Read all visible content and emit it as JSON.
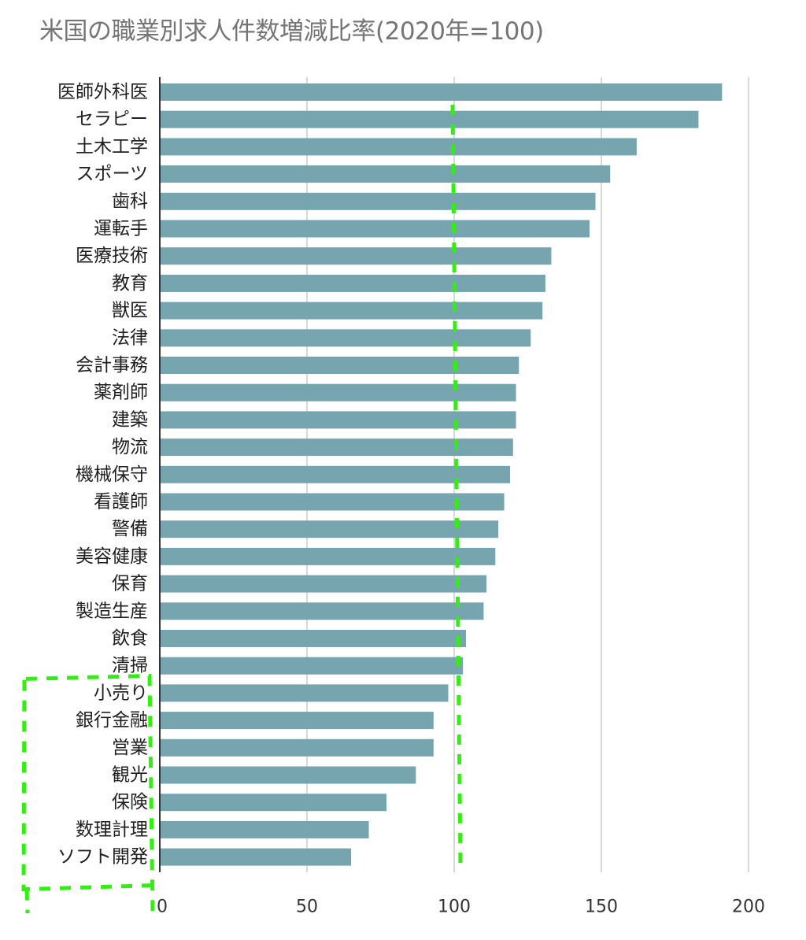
{
  "chart_data": {
    "type": "bar",
    "orientation": "horizontal",
    "title": "米国の職業別求人件数増減比率(2020年=100)",
    "categories": [
      "医師外科医",
      "セラピー",
      "土木工学",
      "スポーツ",
      "歯科",
      "運転手",
      "医療技術",
      "教育",
      "獣医",
      "法律",
      "会計事務",
      "薬剤師",
      "建築",
      "物流",
      "機械保守",
      "看護師",
      "警備",
      "美容健康",
      "保育",
      "製造生産",
      "飲食",
      "清掃",
      "小売り",
      "銀行金融",
      "営業",
      "観光",
      "保険",
      "数理計理",
      "ソフト開発"
    ],
    "values": [
      191,
      183,
      162,
      153,
      148,
      146,
      133,
      131,
      130,
      126,
      122,
      121,
      121,
      120,
      119,
      117,
      115,
      114,
      111,
      110,
      104,
      103,
      98,
      93,
      93,
      87,
      77,
      71,
      65
    ],
    "xticks": [
      "0",
      "50",
      "100",
      "150",
      "200"
    ],
    "xlim": [
      0,
      200
    ],
    "grid": "vertical",
    "colors": {
      "bar": "#76a5af",
      "grid": "#cccccc",
      "axis": "#333333",
      "highlight": "#33ee11"
    },
    "annotations": [
      {
        "type": "dashed-line",
        "x": 100
      },
      {
        "type": "dashed-box",
        "categories": [
          "小売り",
          "ソフト開発"
        ]
      }
    ]
  }
}
